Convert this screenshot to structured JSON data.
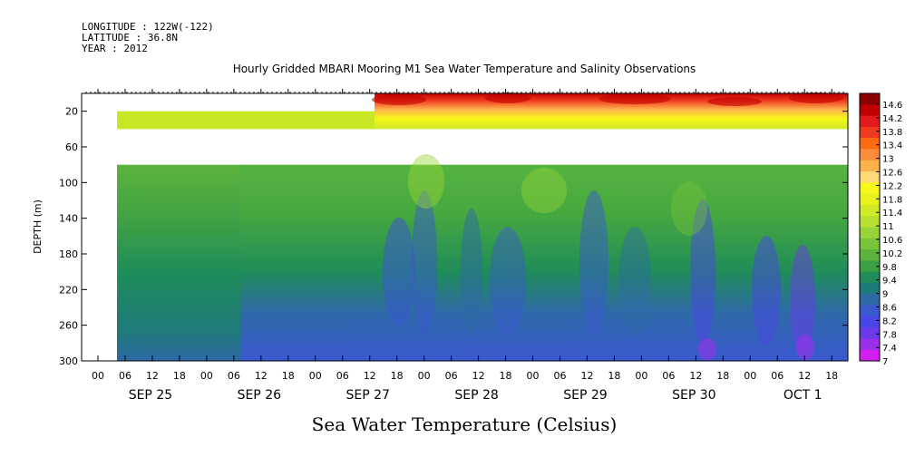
{
  "header": {
    "longitude": "LONGITUDE : 122W(-122)",
    "latitude": "LATITUDE : 36.8N",
    "year": "YEAR : 2012"
  },
  "chart_data": {
    "type": "heatmap",
    "title": "Hourly Gridded MBARI Mooring M1 Sea Water Temperature and Salinity Observations",
    "subtitle": "Sea Water Temperature (Celsius)",
    "xlabel": "",
    "ylabel": "DEPTH (m)",
    "ylim": [
      300,
      0
    ],
    "y_ticks": [
      "20",
      "60",
      "100",
      "140",
      "180",
      "220",
      "260",
      "300"
    ],
    "x_hour_ticks": [
      "00",
      "06",
      "12",
      "18",
      "00",
      "06",
      "12",
      "18",
      "00",
      "06",
      "12",
      "18",
      "00",
      "06",
      "12",
      "18",
      "00",
      "06",
      "12",
      "18",
      "00",
      "06",
      "12",
      "18",
      "00",
      "06",
      "12",
      "18"
    ],
    "x_date_labels": [
      "SEP 25",
      "SEP 26",
      "SEP 27",
      "SEP 28",
      "SEP 29",
      "SEP 30",
      "OCT  1"
    ],
    "colorbar": {
      "levels": [
        "14.6",
        "14.2",
        "13.8",
        "13.4",
        "13",
        "12.6",
        "12.2",
        "11.8",
        "11.4",
        "11",
        "10.6",
        "10.2",
        "9.8",
        "9.4",
        "9",
        "8.6",
        "8.2",
        "7.8",
        "7.4",
        "7"
      ],
      "colors": [
        "#8b0000",
        "#c00000",
        "#e31a1c",
        "#f03b20",
        "#fd6a14",
        "#fd8d3c",
        "#feb24c",
        "#fed976",
        "#f7f71a",
        "#e8f31e",
        "#d0ea2a",
        "#b8e030",
        "#98d438",
        "#78c43a",
        "#5cb43c",
        "#3ea045",
        "#1f8c5a",
        "#1f7a7a",
        "#2e6aa6",
        "#3a58d0",
        "#4a46e6",
        "#6a3ae8",
        "#9b30ea",
        "#d21ff0"
      ]
    },
    "profile": [
      {
        "depth": 10,
        "temp": 13.6
      },
      {
        "depth": 20,
        "temp": 12.2
      },
      {
        "depth": 30,
        "temp": 11.6
      },
      {
        "depth": 40,
        "temp": null
      },
      {
        "depth": 80,
        "temp": 10.5
      },
      {
        "depth": 100,
        "temp": 10.3
      },
      {
        "depth": 140,
        "temp": 10.0
      },
      {
        "depth": 180,
        "temp": 9.6
      },
      {
        "depth": 220,
        "temp": 9.0
      },
      {
        "depth": 260,
        "temp": 8.4
      },
      {
        "depth": 300,
        "temp": 7.9
      }
    ],
    "grid": false,
    "legend_position": "right"
  }
}
